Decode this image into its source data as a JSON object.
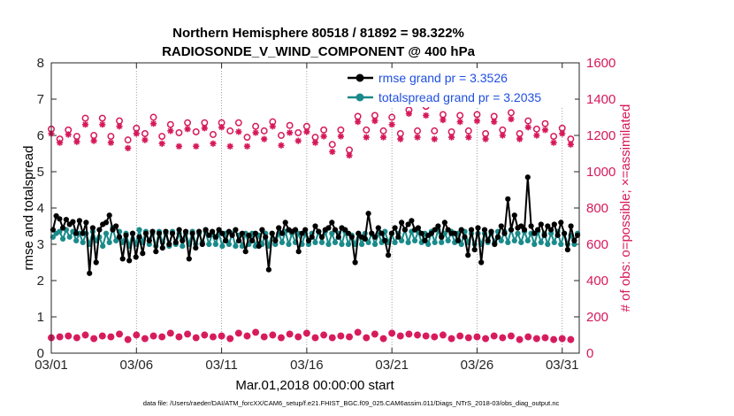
{
  "chart_data": {
    "type": "line",
    "title": "Northern Hemisphere 80518 / 81892 = 98.322%",
    "subtitle": "RADIOSONDE_V_WIND_COMPONENT @ 400 hPa",
    "xlabel": "Mar.01,2018 00:00:00 start",
    "ylabel_left": "rmse and totalspread",
    "ylabel_right": "# of obs: o=possible; ×=assimilated",
    "footer": "data file: /Users/raeder/DAI/ATM_forcXX/CAM6_setup/f.e21.FHIST_BGC.f09_025.CAM6assim.011/Diags_NTrS_2018-03/obs_diag_output.nc",
    "x_tick_labels": [
      "03/01",
      "03/06",
      "03/11",
      "03/16",
      "03/21",
      "03/26",
      "03/31"
    ],
    "x_tick_days": [
      1,
      6,
      11,
      16,
      21,
      26,
      31
    ],
    "xlim": [
      1,
      32
    ],
    "ylim_left": [
      0,
      8
    ],
    "left_ticks": [
      "0",
      "1",
      "2",
      "3",
      "4",
      "5",
      "6",
      "7",
      "8"
    ],
    "ylim_right": [
      0,
      1600
    ],
    "right_ticks": [
      "0",
      "200",
      "400",
      "600",
      "800",
      "1000",
      "1200",
      "1400",
      "1600"
    ],
    "colors": {
      "rmse": "#000000",
      "totalspread": "#1a8a8a",
      "obs": "#d6185a",
      "legend_text": "#1f4fe0"
    },
    "legend": [
      "rmse grand pr = 3.3526",
      "totalspread grand pr = 3.2035"
    ],
    "series": [
      {
        "name": "rmse",
        "axis": "left",
        "values": [
          3.4,
          3.78,
          3.7,
          3.45,
          3.68,
          3.55,
          3.62,
          3.3,
          3.65,
          3.3,
          3.6,
          2.2,
          3.45,
          2.5,
          3.4,
          3.55,
          3.6,
          3.8,
          3.4,
          3.5,
          3.2,
          2.6,
          3.25,
          2.55,
          3.3,
          2.65,
          3.2,
          2.75,
          3.3,
          3.1,
          3.35,
          2.8,
          3.3,
          2.9,
          3.35,
          3.0,
          3.3,
          3.05,
          3.4,
          3.1,
          3.35,
          2.6,
          3.3,
          2.9,
          3.35,
          3.0,
          3.4,
          3.25,
          3.35,
          3.2,
          3.4,
          3.3,
          3.1,
          3.35,
          3.25,
          3.4,
          3.1,
          3.3,
          2.8,
          3.25,
          3.1,
          3.3,
          2.95,
          3.4,
          3.2,
          2.3,
          3.3,
          3.1,
          3.45,
          3.3,
          3.6,
          3.4,
          3.35,
          3.4,
          2.8,
          3.3,
          3.4,
          3.1,
          3.2,
          3.5,
          3.35,
          3.2,
          3.4,
          3.45,
          3.6,
          3.4,
          3.2,
          3.45,
          3.4,
          3.3,
          3.2,
          2.5,
          3.3,
          3.2,
          3.15,
          3.85,
          3.3,
          3.2,
          3.45,
          3.3,
          3.1,
          2.7,
          3.3,
          3.45,
          3.2,
          3.6,
          3.4,
          3.55,
          3.65,
          3.4,
          3.45,
          3.3,
          3.1,
          3.25,
          3.3,
          3.4,
          3.5,
          3.2,
          3.6,
          3.4,
          3.3,
          3.3,
          3.1,
          3.4,
          3.2,
          2.7,
          3.4,
          2.85,
          3.45,
          2.5,
          3.4,
          3.1,
          3.35,
          3.0,
          3.2,
          3.5,
          3.3,
          4.25,
          3.4,
          3.8,
          3.45,
          3.5,
          3.4,
          4.85,
          3.5,
          3.3,
          3.4,
          3.55,
          3.25,
          3.5,
          3.4,
          3.55,
          3.25,
          3.6,
          3.3,
          2.85,
          3.5,
          3.1,
          3.25
        ]
      },
      {
        "name": "totalspread",
        "axis": "left",
        "values": [
          3.2,
          3.3,
          3.35,
          3.15,
          3.4,
          3.2,
          3.35,
          3.1,
          3.3,
          3.05,
          3.3,
          3.0,
          3.35,
          3.1,
          3.2,
          2.95,
          3.3,
          3.05,
          3.45,
          3.1,
          3.35,
          3.05,
          3.3,
          2.95,
          3.3,
          3.0,
          3.4,
          3.05,
          3.35,
          3.0,
          3.3,
          2.95,
          3.35,
          3.05,
          3.3,
          2.95,
          3.35,
          3.0,
          3.3,
          2.95,
          3.3,
          3.0,
          3.35,
          3.0,
          3.3,
          3.05,
          3.35,
          3.0,
          3.3,
          3.0,
          3.3,
          2.95,
          3.3,
          3.0,
          3.3,
          2.95,
          3.25,
          2.95,
          3.3,
          3.0,
          3.3,
          2.95,
          3.25,
          3.0,
          3.3,
          2.95,
          3.3,
          3.0,
          3.3,
          3.05,
          3.35,
          3.0,
          3.3,
          3.05,
          3.3,
          3.0,
          3.3,
          3.0,
          3.3,
          3.05,
          3.35,
          3.05,
          3.35,
          3.0,
          3.3,
          3.05,
          3.3,
          3.0,
          3.35,
          3.0,
          3.25,
          3.0,
          3.3,
          3.0,
          3.3,
          3.05,
          3.3,
          3.0,
          3.3,
          3.05,
          3.35,
          3.05,
          3.3,
          3.05,
          3.3,
          3.1,
          3.4,
          3.05,
          3.35,
          3.1,
          3.35,
          3.05,
          3.3,
          3.0,
          3.35,
          3.05,
          3.4,
          3.05,
          3.3,
          3.1,
          3.35,
          3.05,
          3.3,
          3.0,
          3.35,
          3.05,
          3.3,
          3.0,
          3.3,
          3.0,
          3.3,
          3.05,
          3.3,
          3.05,
          3.35,
          3.1,
          3.35,
          3.05,
          3.4,
          3.1,
          3.3,
          3.05,
          3.35,
          3.1,
          3.3,
          3.0,
          3.35,
          3.05,
          3.3,
          3.0,
          3.3,
          3.05,
          3.35,
          3.0,
          3.3,
          3.0,
          3.25,
          3.0,
          3.3
        ]
      },
      {
        "name": "obs possible (o)",
        "axis": "right",
        "x": [
          1.0,
          1.5,
          2.0,
          2.5,
          3.0,
          3.5,
          4.0,
          4.5,
          5.0,
          5.5,
          6.0,
          6.5,
          7.0,
          7.5,
          8.0,
          8.5,
          9.0,
          9.5,
          10.0,
          10.5,
          11.0,
          11.5,
          12.0,
          12.5,
          13.0,
          13.5,
          14.0,
          14.5,
          15.0,
          15.5,
          16.0,
          16.5,
          17.0,
          17.5,
          18.0,
          18.5,
          19.0,
          19.5,
          20.0,
          20.5,
          21.0,
          21.5,
          22.0,
          22.5,
          23.0,
          23.5,
          24.0,
          24.5,
          25.0,
          25.5,
          26.0,
          26.5,
          27.0,
          27.5,
          28.0,
          28.5,
          29.0,
          29.5,
          30.0,
          30.5,
          31.0,
          31.5
        ],
        "values": [
          1235,
          1180,
          1230,
          1195,
          1295,
          1200,
          1295,
          1195,
          1280,
          1175,
          1240,
          1210,
          1300,
          1195,
          1260,
          1215,
          1270,
          1220,
          1270,
          1205,
          1270,
          1225,
          1270,
          1190,
          1250,
          1225,
          1275,
          1200,
          1255,
          1215,
          1250,
          1190,
          1230,
          1150,
          1230,
          1120,
          1305,
          1230,
          1310,
          1225,
          1300,
          1210,
          1340,
          1225,
          1360,
          1225,
          1315,
          1220,
          1310,
          1225,
          1315,
          1210,
          1305,
          1230,
          1325,
          1210,
          1280,
          1235,
          1265,
          1195,
          1240,
          1180
        ]
      },
      {
        "name": "obs assimilated (×)",
        "axis": "right",
        "x": [
          1.0,
          1.5,
          2.0,
          2.5,
          3.0,
          3.5,
          4.0,
          4.5,
          5.0,
          5.5,
          6.0,
          6.5,
          7.0,
          7.5,
          8.0,
          8.5,
          9.0,
          9.5,
          10.0,
          10.5,
          11.0,
          11.5,
          12.0,
          12.5,
          13.0,
          13.5,
          14.0,
          14.5,
          15.0,
          15.5,
          16.0,
          16.5,
          17.0,
          17.5,
          18.0,
          18.5,
          19.0,
          19.5,
          20.0,
          20.5,
          21.0,
          21.5,
          22.0,
          22.5,
          23.0,
          23.5,
          24.0,
          24.5,
          25.0,
          25.5,
          26.0,
          26.5,
          27.0,
          27.5,
          28.0,
          28.5,
          29.0,
          29.5,
          30.0,
          30.5,
          31.0,
          31.5
        ],
        "values": [
          1210,
          1160,
          1205,
          1165,
          1260,
          1170,
          1260,
          1160,
          1250,
          1130,
          1210,
          1175,
          1265,
          1155,
          1225,
          1140,
          1235,
          1140,
          1240,
          1155,
          1245,
          1140,
          1220,
          1140,
          1215,
          1180,
          1250,
          1145,
          1215,
          1170,
          1220,
          1160,
          1195,
          1110,
          1195,
          1090,
          1275,
          1190,
          1280,
          1190,
          1260,
          1180,
          1320,
          1190,
          1310,
          1180,
          1285,
          1190,
          1275,
          1190,
          1280,
          1180,
          1275,
          1200,
          1290,
          1180,
          1245,
          1200,
          1230,
          1160,
          1210,
          1150
        ]
      },
      {
        "name": "obs bottom row (possible / assimilated)",
        "axis": "right",
        "x": [
          1.0,
          1.5,
          2.0,
          2.5,
          3.0,
          3.5,
          4.0,
          4.5,
          5.0,
          5.5,
          6.0,
          6.5,
          7.0,
          7.5,
          8.0,
          8.5,
          9.0,
          9.5,
          10.0,
          10.5,
          11.0,
          11.5,
          12.0,
          12.5,
          13.0,
          13.5,
          14.0,
          14.5,
          15.0,
          15.5,
          16.0,
          16.5,
          17.0,
          17.5,
          18.0,
          18.5,
          19.0,
          19.5,
          20.0,
          20.5,
          21.0,
          21.5,
          22.0,
          22.5,
          23.0,
          23.5,
          24.0,
          24.5,
          25.0,
          25.5,
          26.0,
          26.5,
          27.0,
          27.5,
          28.0,
          28.5,
          29.0,
          29.5,
          30.0,
          30.5,
          31.0,
          31.5
        ],
        "values": [
          85,
          90,
          95,
          85,
          100,
          80,
          95,
          90,
          105,
          75,
          100,
          80,
          95,
          90,
          110,
          90,
          105,
          85,
          100,
          90,
          95,
          80,
          110,
          95,
          115,
          90,
          100,
          85,
          105,
          90,
          110,
          85,
          100,
          85,
          95,
          90,
          115,
          85,
          105,
          80,
          110,
          95,
          105,
          100,
          95,
          90,
          100,
          80,
          95,
          85,
          90,
          80,
          95,
          85,
          95,
          75,
          90,
          80,
          85,
          75,
          80,
          75
        ]
      }
    ]
  }
}
